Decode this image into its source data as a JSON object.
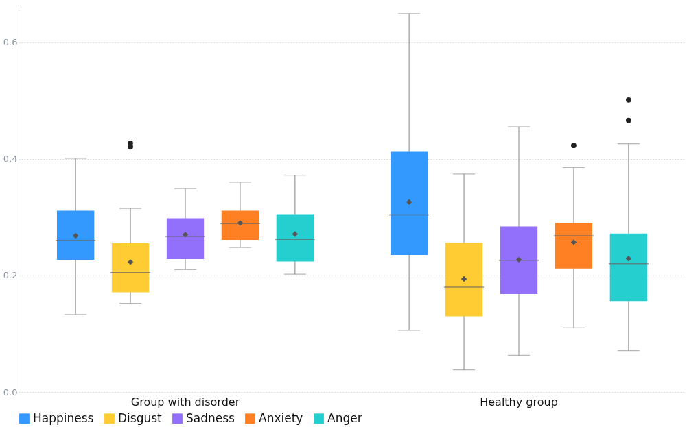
{
  "chart_data": {
    "type": "box",
    "categories": [
      "Group with disorder",
      "Healthy group"
    ],
    "ylim": [
      0,
      0.656
    ],
    "yticks": [
      {
        "value": 0,
        "label": "0.0"
      },
      0.2,
      0.4,
      0.6
    ],
    "grid": "y",
    "legend": "bottom",
    "series": [
      {
        "name": "Happiness",
        "color": "#3399ff",
        "boxes": [
          {
            "low": 0.133,
            "q1": 0.227,
            "median": 0.26,
            "q3": 0.311,
            "high": 0.401,
            "mean": 0.268
          },
          {
            "low": 0.106,
            "q1": 0.235,
            "median": 0.304,
            "q3": 0.412,
            "high": 0.649,
            "mean": 0.326
          }
        ]
      },
      {
        "name": "Disgust",
        "color": "#ffcc33",
        "boxes": [
          {
            "low": 0.152,
            "q1": 0.171,
            "median": 0.205,
            "q3": 0.255,
            "high": 0.315,
            "mean": 0.223,
            "outliers": [
              0.427,
              0.421
            ]
          },
          {
            "low": 0.038,
            "q1": 0.13,
            "median": 0.18,
            "q3": 0.256,
            "high": 0.374,
            "mean": 0.194
          }
        ]
      },
      {
        "name": "Sadness",
        "color": "#9370fb",
        "boxes": [
          {
            "low": 0.21,
            "q1": 0.228,
            "median": 0.267,
            "q3": 0.298,
            "high": 0.349,
            "mean": 0.27
          },
          {
            "low": 0.063,
            "q1": 0.168,
            "median": 0.226,
            "q3": 0.284,
            "high": 0.455,
            "mean": 0.227
          }
        ]
      },
      {
        "name": "Anxiety",
        "color": "#ff8022",
        "boxes": [
          {
            "low": 0.248,
            "q1": 0.261,
            "median": 0.289,
            "q3": 0.311,
            "high": 0.36,
            "mean": 0.29
          },
          {
            "low": 0.11,
            "q1": 0.212,
            "median": 0.268,
            "q3": 0.29,
            "high": 0.385,
            "mean": 0.257,
            "outliers": [
              0.423
            ]
          }
        ]
      },
      {
        "name": "Anger",
        "color": "#26cfcf",
        "boxes": [
          {
            "low": 0.202,
            "q1": 0.224,
            "median": 0.262,
            "q3": 0.305,
            "high": 0.372,
            "mean": 0.271
          },
          {
            "low": 0.071,
            "q1": 0.156,
            "median": 0.22,
            "q3": 0.272,
            "high": 0.426,
            "mean": 0.229,
            "outliers": [
              0.501,
              0.466
            ]
          }
        ]
      }
    ]
  }
}
